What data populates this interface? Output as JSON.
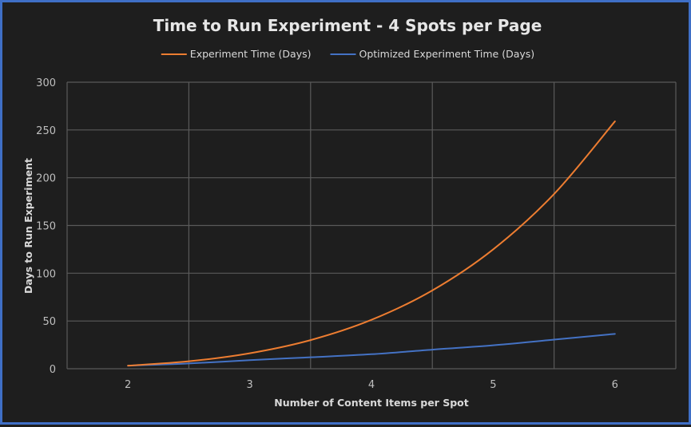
{
  "chart_data": {
    "type": "line",
    "title": "Time to Run Experiment - 4 Spots per Page",
    "xlabel": "Number of Content Items per Spot",
    "ylabel": "Days to Run Experiment",
    "x": [
      2,
      2.5,
      3,
      3.5,
      4,
      4.5,
      5,
      5.5,
      6
    ],
    "xlim": [
      1.5,
      6.5
    ],
    "ylim": [
      0,
      300
    ],
    "xticks": [
      2,
      3,
      4,
      5,
      6
    ],
    "yticks": [
      0,
      50,
      100,
      150,
      200,
      250,
      300
    ],
    "grid": true,
    "smooth": true,
    "legend_position": "top",
    "colors": {
      "background": "#1e1e1e",
      "border": "#3f6fc6",
      "grid": "#5a5a5a"
    },
    "series": [
      {
        "name": "Experiment Time (Days)",
        "color": "#ed7d31",
        "values": [
          3.2,
          7.8,
          16.2,
          30,
          51.2,
          82,
          125,
          183,
          259
        ]
      },
      {
        "name": "Optimized Experiment Time (Days)",
        "color": "#4472c4",
        "values": [
          3.2,
          5.5,
          9,
          12,
          15.2,
          20,
          24.5,
          30.5,
          36.5
        ]
      }
    ]
  }
}
